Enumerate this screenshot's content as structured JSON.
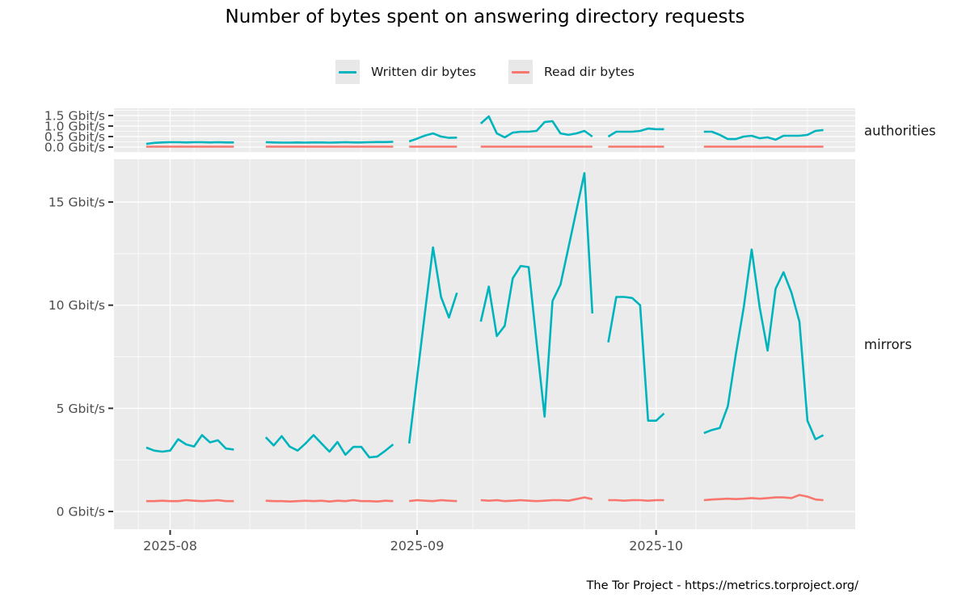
{
  "title": "Number of bytes spent on answering directory requests",
  "caption": "The Tor Project - https://metrics.torproject.org/",
  "legend": {
    "items": [
      {
        "label": "Written dir bytes",
        "color": "#00B4BE"
      },
      {
        "label": "Read dir bytes",
        "color": "#F8766D"
      }
    ]
  },
  "colors": {
    "written": "#00B4BE",
    "read": "#F8766D",
    "panel_bg": "#EBEBEB",
    "grid": "#FFFFFF",
    "axis_text": "#4D4D4D",
    "tick_mark": "#333333",
    "facet_text": "#1A1A1A"
  },
  "chart_data": {
    "type": "line",
    "title": "Number of bytes spent on answering directory requests",
    "unit": "Gbit/s",
    "legend_position": "top",
    "grid": true,
    "x_axis": {
      "range": [
        "2025-07-25",
        "2025-10-26"
      ],
      "tick_dates": [
        "2025-08-01",
        "2025-09-01",
        "2025-10-01"
      ],
      "tick_labels": [
        "2025-08",
        "2025-09",
        "2025-10"
      ],
      "minor_gridlines": "weekly",
      "first_minor": "2025-07-28",
      "last_minor": "2025-10-20"
    },
    "facets": [
      {
        "label": "authorities",
        "ylim": [
          0,
          1.8
        ],
        "yticks": [
          {
            "value": 0.0,
            "label": "0.0 Gbit/s"
          },
          {
            "value": 0.5,
            "label": "0.5 Gbit/s"
          },
          {
            "value": 1.0,
            "label": "1.0 Gbit/s"
          },
          {
            "value": 1.5,
            "label": "1.5 Gbit/s"
          }
        ],
        "minor_yticks": [
          -0.25,
          0.25,
          0.75,
          1.25,
          1.75
        ],
        "series": [
          {
            "name": "Written dir bytes",
            "color_key": "written",
            "segments": [
              {
                "start": "2025-07-29",
                "values": [
                  0.15,
                  0.2,
                  0.22,
                  0.23,
                  0.23,
                  0.22,
                  0.23,
                  0.23,
                  0.22,
                  0.23,
                  0.22,
                  0.22
                ]
              },
              {
                "start": "2025-08-13",
                "values": [
                  0.23,
                  0.22,
                  0.21,
                  0.21,
                  0.22,
                  0.21,
                  0.22,
                  0.22,
                  0.21,
                  0.22,
                  0.23,
                  0.22,
                  0.22,
                  0.23,
                  0.24,
                  0.24,
                  0.25
                ]
              },
              {
                "start": "2025-08-31",
                "values": [
                  0.27,
                  0.4,
                  0.55,
                  0.65,
                  0.5,
                  0.44,
                  0.45
                ]
              },
              {
                "start": "2025-09-09",
                "values": [
                  1.12,
                  1.46,
                  0.65,
                  0.46,
                  0.69,
                  0.73,
                  0.73,
                  0.77,
                  1.19,
                  1.23,
                  0.65,
                  0.58,
                  0.65,
                  0.77,
                  0.5
                ]
              },
              {
                "start": "2025-09-25",
                "values": [
                  0.5,
                  0.73,
                  0.73,
                  0.73,
                  0.77,
                  0.88,
                  0.85,
                  0.85
                ]
              },
              {
                "start": "2025-10-07",
                "values": [
                  0.73,
                  0.73,
                  0.58,
                  0.38,
                  0.38,
                  0.5,
                  0.54,
                  0.42,
                  0.46,
                  0.35,
                  0.54,
                  0.54,
                  0.54,
                  0.58,
                  0.77,
                  0.81
                ]
              }
            ]
          },
          {
            "name": "Read dir bytes",
            "color_key": "read",
            "segments": [
              {
                "start": "2025-07-29",
                "values": [
                  0.02,
                  0.02,
                  0.02,
                  0.02,
                  0.02,
                  0.02,
                  0.02,
                  0.02,
                  0.02,
                  0.02,
                  0.02,
                  0.02
                ]
              },
              {
                "start": "2025-08-13",
                "values": [
                  0.02,
                  0.02,
                  0.02,
                  0.02,
                  0.02,
                  0.02,
                  0.02,
                  0.02,
                  0.02,
                  0.02,
                  0.02,
                  0.02,
                  0.02,
                  0.02,
                  0.02,
                  0.02,
                  0.02
                ]
              },
              {
                "start": "2025-08-31",
                "values": [
                  0.02,
                  0.02,
                  0.02,
                  0.02,
                  0.02,
                  0.02,
                  0.02
                ]
              },
              {
                "start": "2025-09-09",
                "values": [
                  0.02,
                  0.02,
                  0.02,
                  0.02,
                  0.02,
                  0.02,
                  0.02,
                  0.02,
                  0.02,
                  0.02,
                  0.02,
                  0.02,
                  0.02,
                  0.02,
                  0.02
                ]
              },
              {
                "start": "2025-09-25",
                "values": [
                  0.02,
                  0.02,
                  0.02,
                  0.02,
                  0.02,
                  0.02,
                  0.02,
                  0.02
                ]
              },
              {
                "start": "2025-10-07",
                "values": [
                  0.02,
                  0.02,
                  0.02,
                  0.02,
                  0.02,
                  0.02,
                  0.02,
                  0.02,
                  0.02,
                  0.02,
                  0.02,
                  0.02,
                  0.02,
                  0.02,
                  0.02,
                  0.02
                ]
              }
            ]
          }
        ]
      },
      {
        "label": "mirrors",
        "ylim": [
          0,
          17
        ],
        "yticks": [
          {
            "value": 0,
            "label": "0 Gbit/s"
          },
          {
            "value": 5,
            "label": "5 Gbit/s"
          },
          {
            "value": 10,
            "label": "10 Gbit/s"
          },
          {
            "value": 15,
            "label": "15 Gbit/s"
          }
        ],
        "minor_yticks": [
          2.5,
          7.5,
          12.5
        ],
        "series": [
          {
            "name": "Written dir bytes",
            "color_key": "written",
            "segments": [
              {
                "start": "2025-07-29",
                "values": [
                  3.1,
                  2.95,
                  2.9,
                  2.95,
                  3.5,
                  3.25,
                  3.15,
                  3.7,
                  3.35,
                  3.45,
                  3.05,
                  3.0
                ]
              },
              {
                "start": "2025-08-13",
                "values": [
                  3.6,
                  3.2,
                  3.65,
                  3.15,
                  2.95,
                  3.3,
                  3.7,
                  3.3,
                  2.9,
                  3.37,
                  2.75,
                  3.13,
                  3.13,
                  2.62,
                  2.66,
                  2.94,
                  3.25
                ]
              },
              {
                "start": "2025-08-31",
                "values": [
                  3.3,
                  6.5,
                  9.7,
                  12.8,
                  10.4,
                  9.4,
                  10.6
                ]
              },
              {
                "start": "2025-09-09",
                "values": [
                  9.2,
                  10.9,
                  8.5,
                  9.0,
                  11.3,
                  11.9,
                  11.85,
                  8.2,
                  4.6,
                  10.2,
                  11.0,
                  12.8,
                  14.6,
                  16.4,
                  9.6
                ]
              },
              {
                "start": "2025-09-25",
                "values": [
                  8.2,
                  10.4,
                  10.4,
                  10.35,
                  10.0,
                  4.4,
                  4.4,
                  4.75
                ]
              },
              {
                "start": "2025-10-07",
                "values": [
                  3.8,
                  3.95,
                  4.05,
                  5.1,
                  7.6,
                  9.9,
                  12.7,
                  9.9,
                  7.8,
                  10.8,
                  11.6,
                  10.6,
                  9.2,
                  4.4,
                  3.5,
                  3.7
                ]
              }
            ]
          },
          {
            "name": "Read dir bytes",
            "color_key": "read",
            "segments": [
              {
                "start": "2025-07-29",
                "values": [
                  0.5,
                  0.5,
                  0.52,
                  0.5,
                  0.5,
                  0.55,
                  0.52,
                  0.5,
                  0.52,
                  0.55,
                  0.5,
                  0.5
                ]
              },
              {
                "start": "2025-08-13",
                "values": [
                  0.52,
                  0.5,
                  0.5,
                  0.48,
                  0.5,
                  0.52,
                  0.5,
                  0.52,
                  0.48,
                  0.52,
                  0.5,
                  0.55,
                  0.5,
                  0.5,
                  0.48,
                  0.52,
                  0.5
                ]
              },
              {
                "start": "2025-08-31",
                "values": [
                  0.5,
                  0.55,
                  0.52,
                  0.5,
                  0.55,
                  0.52,
                  0.5
                ]
              },
              {
                "start": "2025-09-09",
                "values": [
                  0.55,
                  0.52,
                  0.55,
                  0.5,
                  0.52,
                  0.55,
                  0.52,
                  0.5,
                  0.52,
                  0.55,
                  0.55,
                  0.52,
                  0.6,
                  0.68,
                  0.6
                ]
              },
              {
                "start": "2025-09-25",
                "values": [
                  0.55,
                  0.55,
                  0.52,
                  0.55,
                  0.55,
                  0.52,
                  0.55,
                  0.55
                ]
              },
              {
                "start": "2025-10-07",
                "values": [
                  0.55,
                  0.58,
                  0.6,
                  0.62,
                  0.6,
                  0.62,
                  0.65,
                  0.62,
                  0.65,
                  0.68,
                  0.68,
                  0.65,
                  0.8,
                  0.72,
                  0.58,
                  0.55
                ]
              }
            ]
          }
        ]
      }
    ]
  }
}
